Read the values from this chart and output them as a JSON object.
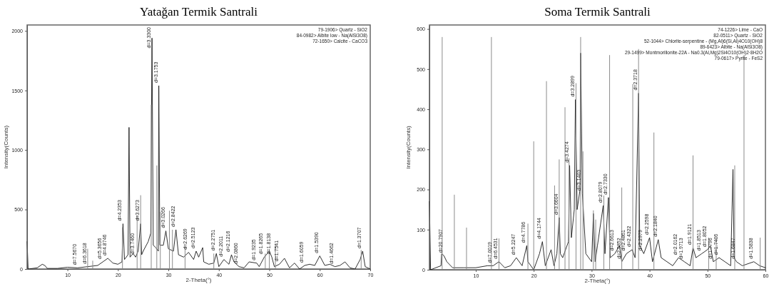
{
  "chart_data": [
    {
      "type": "line",
      "title": "Yatağan Termik Santrali",
      "xlabel": "2-Theta(°)",
      "ylabel": "Intensity(Counts)",
      "xlim": [
        2,
        70
      ],
      "ylim": [
        0,
        2050
      ],
      "xticks": [
        10,
        20,
        30,
        40,
        50,
        60,
        70
      ],
      "yticks": [
        0,
        500,
        1000,
        1500,
        2000
      ],
      "series": [
        {
          "type": "bar",
          "color": "#8c8c8c",
          "x": [
            14,
            15,
            20.9,
            23.8,
            24.5,
            26.6,
            27.7,
            28.4,
            30.2,
            30.8,
            33.3,
            39,
            49.2,
            50,
            51.2,
            68.2
          ],
          "values": [
            170,
            70,
            350,
            450,
            620,
            1380,
            870,
            480,
            490,
            330,
            190,
            130,
            130,
            160,
            210,
            160
          ]
        },
        {
          "color": "#1a1a1a",
          "x": [
            2,
            2.2,
            4,
            5,
            5.5,
            6,
            8,
            10,
            12,
            14,
            16,
            17,
            18,
            19,
            20,
            20.8,
            21,
            21.3,
            22,
            22.2,
            22.4,
            23,
            23.5,
            24,
            24.5,
            24.7,
            25,
            26,
            26.5,
            26.75,
            27,
            27.5,
            28,
            28.1,
            28.3,
            29,
            29.5,
            30,
            31,
            31.5,
            32,
            33,
            34,
            35,
            35.5,
            36,
            36.8,
            37,
            38,
            39,
            39.5,
            40,
            41,
            42,
            42.5,
            43,
            44,
            45,
            46,
            47.5,
            48,
            49,
            50,
            50.5,
            51,
            52,
            53,
            54,
            55,
            56,
            57,
            58,
            59,
            60,
            61,
            62,
            63,
            64,
            65,
            66,
            67,
            68,
            68.5,
            69,
            70
          ],
          "values": [
            230,
            0,
            10,
            40,
            30,
            5,
            5,
            15,
            10,
            20,
            30,
            60,
            90,
            50,
            40,
            60,
            380,
            80,
            120,
            1190,
            100,
            130,
            100,
            150,
            380,
            120,
            150,
            230,
            300,
            1940,
            200,
            180,
            150,
            1540,
            200,
            200,
            320,
            170,
            150,
            330,
            120,
            100,
            140,
            80,
            150,
            100,
            180,
            60,
            40,
            50,
            130,
            20,
            80,
            40,
            120,
            60,
            20,
            10,
            60,
            50,
            20,
            100,
            150,
            100,
            20,
            40,
            90,
            10,
            50,
            0,
            30,
            40,
            30,
            110,
            30,
            40,
            20,
            30,
            60,
            10,
            0,
            80,
            150,
            20,
            0
          ]
        }
      ],
      "annotations": [
        "79-1906> Quartz - SiO2",
        "84-0982> Albite low - Na(AlSi3O8)",
        "72-1650> Calcite - CaCO3",
        {
          "text": "d=7.5670",
          "x": 12,
          "y": 10
        },
        {
          "text": "d=6.3618",
          "x": 14,
          "y": 20
        },
        {
          "text": "d=5.3656",
          "x": 17,
          "y": 60
        },
        {
          "text": "d=4.8746",
          "x": 18,
          "y": 90
        },
        {
          "text": "d=4.2353",
          "x": 21,
          "y": 380
        },
        {
          "text": "d=3.7460",
          "x": 23.5,
          "y": 100
        },
        {
          "text": "d=3.6273",
          "x": 24.5,
          "y": 380
        },
        {
          "text": "d=3.3300",
          "x": 26.75,
          "y": 1940
        },
        {
          "text": "d=3.1753",
          "x": 28.1,
          "y": 1540
        },
        {
          "text": "d=3.0266",
          "x": 29.5,
          "y": 320
        },
        {
          "text": "d=2.8422",
          "x": 31.5,
          "y": 330
        },
        {
          "text": "d=2.6269",
          "x": 34,
          "y": 140
        },
        {
          "text": "d=2.5123",
          "x": 35.5,
          "y": 150
        },
        {
          "text": "d=2.2751",
          "x": 39.5,
          "y": 130
        },
        {
          "text": "d=2.2011",
          "x": 41,
          "y": 80
        },
        {
          "text": "d=2.1216",
          "x": 42.5,
          "y": 120
        },
        {
          "text": "d=2.0860",
          "x": 44,
          "y": 20
        },
        {
          "text": "d=1.9235",
          "x": 47.5,
          "y": 50
        },
        {
          "text": "d=1.8265",
          "x": 49,
          "y": 100
        },
        {
          "text": "d=1.8138",
          "x": 50.5,
          "y": 100
        },
        {
          "text": "d=1.7541",
          "x": 52,
          "y": 40
        },
        {
          "text": "d=1.6059",
          "x": 57,
          "y": 30
        },
        {
          "text": "d=1.5390",
          "x": 60,
          "y": 110
        },
        {
          "text": "d=1.4662",
          "x": 63,
          "y": 20
        },
        {
          "text": "d=1.3707",
          "x": 68.5,
          "y": 150
        }
      ]
    },
    {
      "type": "line",
      "title": "Soma Termik Santrali",
      "xlabel": "2-Theta(°)",
      "ylabel": "Intensity(Counts)",
      "xlim": [
        2,
        60
      ],
      "ylim": [
        0,
        610
      ],
      "xticks": [
        10,
        20,
        30,
        40,
        50,
        60
      ],
      "yticks": [
        0,
        100,
        200,
        300,
        400,
        500,
        600
      ],
      "series": [
        {
          "type": "bar",
          "color": "#8c8c8c",
          "x": [
            4.2,
            6.3,
            8.4,
            12.7,
            14,
            19,
            20,
            22.2,
            23.6,
            24.4,
            25.4,
            26.1,
            27.3,
            28.1,
            28.5,
            30.3,
            30.7,
            32.1,
            33.1,
            35.2,
            37.1,
            38.1,
            40.75,
            47.5,
            50.2,
            51.5,
            54.7,
            56.3,
            59.1
          ],
          "values": [
            580,
            187,
            105,
            580,
            78,
            115,
            320,
            470,
            210,
            275,
            405,
            278,
            465,
            580,
            295,
            148,
            125,
            185,
            535,
            205,
            463,
            550,
            342,
            285,
            80,
            78,
            260,
            535,
            80
          ]
        },
        {
          "color": "#1a1a1a",
          "x": [
            2,
            2.2,
            4,
            4.1,
            4.5,
            5,
            6,
            8,
            10,
            12,
            13,
            14,
            15,
            16,
            17,
            18,
            18.8,
            19,
            20,
            21,
            21.5,
            22,
            23,
            23.5,
            24,
            24.4,
            24.6,
            25,
            26,
            26.2,
            26.5,
            27,
            27.2,
            27.5,
            28,
            28.1,
            28.4,
            29,
            30,
            30.3,
            30.6,
            31,
            32,
            32.3,
            32.9,
            33.2,
            34,
            34.8,
            35.2,
            36,
            37,
            37.5,
            38.1,
            38.3,
            39,
            40,
            40.5,
            41.5,
            42,
            43,
            44,
            45,
            46,
            47,
            47.5,
            48,
            49,
            50,
            50.5,
            51,
            52,
            53,
            54,
            54.4,
            54.6,
            55,
            56,
            58,
            59,
            60
          ],
          "values": [
            170,
            0,
            10,
            40,
            35,
            20,
            5,
            5,
            5,
            10,
            10,
            20,
            5,
            10,
            30,
            10,
            60,
            20,
            0,
            40,
            70,
            10,
            50,
            10,
            40,
            130,
            40,
            30,
            70,
            260,
            80,
            150,
            424,
            150,
            200,
            540,
            190,
            40,
            20,
            140,
            20,
            60,
            160,
            40,
            180,
            30,
            40,
            60,
            20,
            40,
            50,
            30,
            440,
            60,
            40,
            80,
            20,
            75,
            30,
            20,
            10,
            30,
            20,
            10,
            55,
            30,
            40,
            50,
            60,
            20,
            30,
            20,
            10,
            250,
            30,
            20,
            10,
            20,
            10,
            5
          ]
        }
      ],
      "annotations": [
        "74-1226> Lime - CaO",
        "82-0511> Quartz - SiO2",
        "52-1044> Chlorite-serpentine - (Mg,Al)6(Si,Al)4O10(OH)8",
        "89-6423> Albite - Na(AlSi3O8)",
        "29-1499> Montmorillonite-22A - Na0.3(Al,Mg)2Si4O10(OH)2·8H2O",
        "79-0617> Pyrite - FeS2",
        {
          "text": "d=20.7907",
          "x": 4.5,
          "y": 35
        },
        {
          "text": "d=7.0019",
          "x": 13,
          "y": 10
        },
        {
          "text": "d=6.4531",
          "x": 14,
          "y": 20
        },
        {
          "text": "d=5.2247",
          "x": 17,
          "y": 30
        },
        {
          "text": "d=4.7786",
          "x": 18.8,
          "y": 60
        },
        {
          "text": "d=4.1744",
          "x": 21.5,
          "y": 70
        },
        {
          "text": "d=3.6604",
          "x": 24.4,
          "y": 130
        },
        {
          "text": "d=3.4274",
          "x": 26.2,
          "y": 260
        },
        {
          "text": "d=3.2899",
          "x": 27.2,
          "y": 424
        },
        {
          "text": "d=3.1403",
          "x": 28.4,
          "y": 190
        },
        {
          "text": "d=2.8079",
          "x": 32,
          "y": 160
        },
        {
          "text": "d=2.7330",
          "x": 32.9,
          "y": 180
        },
        {
          "text": "d=2.6613",
          "x": 34,
          "y": 40
        },
        {
          "text": "d=2.5852",
          "x": 35.2,
          "y": 20
        },
        {
          "text": "d=2.4861",
          "x": 36,
          "y": 40
        },
        {
          "text": "d=2.4322",
          "x": 37,
          "y": 50
        },
        {
          "text": "d=2.3718",
          "x": 38.1,
          "y": 440
        },
        {
          "text": "d=2.2979",
          "x": 39,
          "y": 40
        },
        {
          "text": "d=2.2598",
          "x": 40,
          "y": 80
        },
        {
          "text": "d=2.1840",
          "x": 41.5,
          "y": 75
        },
        {
          "text": "d=2.0162",
          "x": 45,
          "y": 30
        },
        {
          "text": "d=1.9713",
          "x": 46,
          "y": 20
        },
        {
          "text": "d=1.9121",
          "x": 47.5,
          "y": 55
        },
        {
          "text": "d=1.8513",
          "x": 49,
          "y": 40
        },
        {
          "text": "d=1.8052",
          "x": 50,
          "y": 50
        },
        {
          "text": "d=1.7796",
          "x": 51,
          "y": 20
        },
        {
          "text": "d=1.7406",
          "x": 52,
          "y": 30
        },
        {
          "text": "d=1.6847",
          "x": 55,
          "y": 20
        },
        {
          "text": "d=1.5838",
          "x": 58,
          "y": 20
        }
      ]
    }
  ]
}
